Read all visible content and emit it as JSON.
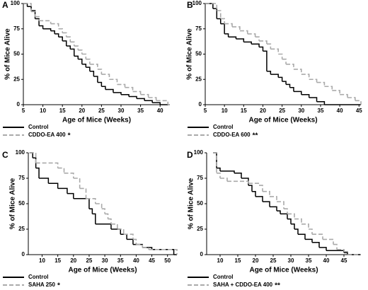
{
  "chart_data": [
    {
      "type": "line",
      "step": true,
      "panel": "A",
      "xlabel": "Age of Mice (Weeks)",
      "ylabel": "% of Mice Alive",
      "xlim": [
        5,
        42.5
      ],
      "xticks": [
        5,
        10,
        15,
        20,
        25,
        30,
        35,
        40
      ],
      "ylim": [
        0,
        100
      ],
      "yticks": [
        0,
        25,
        50,
        75,
        100
      ],
      "significance": "*",
      "series": [
        {
          "name": "Control",
          "color": "#000000",
          "linestyle": "solid",
          "x": [
            5,
            6,
            7,
            8,
            9,
            10,
            12,
            13,
            14,
            15,
            16,
            17,
            18,
            19,
            20,
            21,
            22,
            23,
            24,
            25,
            26,
            28,
            30,
            32,
            34,
            36,
            38,
            40
          ],
          "values": [
            100,
            97,
            93,
            85,
            78,
            75,
            73,
            70,
            67,
            63,
            58,
            55,
            48,
            45,
            40,
            37,
            33,
            28,
            22,
            18,
            15,
            12,
            10,
            8,
            6,
            4,
            2,
            0
          ]
        },
        {
          "name": "CDDO-EA 400",
          "color": "#aaaaaa",
          "linestyle": "dashed",
          "x": [
            5,
            7,
            8,
            9,
            12,
            14,
            15,
            16,
            17,
            18,
            19,
            20,
            21,
            22,
            24,
            25,
            27,
            29,
            31,
            33,
            35,
            37,
            39,
            42
          ],
          "values": [
            100,
            92,
            87,
            83,
            80,
            75,
            71,
            67,
            62,
            58,
            54,
            50,
            45,
            40,
            35,
            30,
            25,
            20,
            17,
            13,
            10,
            7,
            4,
            0
          ]
        }
      ]
    },
    {
      "type": "line",
      "step": true,
      "panel": "B",
      "xlabel": "Age of Mice (Weeks)",
      "ylabel": "% of Mice Alive",
      "xlim": [
        5,
        45.5
      ],
      "xticks": [
        5,
        10,
        15,
        20,
        25,
        30,
        35,
        40,
        45
      ],
      "ylim": [
        0,
        100
      ],
      "yticks": [
        0,
        25,
        50,
        75,
        100
      ],
      "significance": "**",
      "series": [
        {
          "name": "Control",
          "color": "#000000",
          "linestyle": "solid",
          "x": [
            5,
            7,
            8,
            9,
            10,
            11,
            13,
            15,
            17,
            19,
            20,
            21,
            22,
            24,
            25,
            26,
            27,
            28,
            30,
            32,
            34,
            36
          ],
          "values": [
            100,
            95,
            85,
            80,
            70,
            67,
            65,
            62,
            60,
            57,
            53,
            33,
            30,
            27,
            23,
            20,
            17,
            13,
            10,
            7,
            3,
            0
          ]
        },
        {
          "name": "CDDO-EA 600",
          "color": "#aaaaaa",
          "linestyle": "dashed",
          "x": [
            5,
            8,
            9,
            10,
            12,
            14,
            16,
            18,
            19,
            21,
            22,
            24,
            25,
            26,
            28,
            30,
            32,
            34,
            36,
            38,
            40,
            42,
            44,
            45.5
          ],
          "values": [
            100,
            93,
            85,
            80,
            77,
            73,
            70,
            67,
            63,
            60,
            55,
            50,
            45,
            40,
            35,
            30,
            25,
            22,
            18,
            14,
            10,
            7,
            4,
            0
          ]
        }
      ]
    },
    {
      "type": "line",
      "step": true,
      "panel": "C",
      "xlabel": "Age of Mice (Weeks)",
      "ylabel": "% of Mice Alive",
      "xlim": [
        5.6,
        53
      ],
      "xticks": [
        10,
        15,
        20,
        25,
        30,
        35,
        40,
        45,
        50
      ],
      "ylim": [
        0,
        100
      ],
      "yticks": [
        0,
        25,
        50,
        75,
        100
      ],
      "significance": "*",
      "series": [
        {
          "name": "Control",
          "color": "#000000",
          "linestyle": "solid",
          "x": [
            6,
            7,
            8,
            9,
            12,
            15,
            18,
            20,
            25,
            26,
            27,
            32,
            35,
            37,
            39,
            42,
            45,
            52
          ],
          "values": [
            100,
            95,
            85,
            75,
            70,
            65,
            60,
            55,
            45,
            40,
            30,
            25,
            20,
            15,
            10,
            7,
            5,
            0
          ]
        },
        {
          "name": "SAHA 250",
          "color": "#aaaaaa",
          "linestyle": "dashed",
          "x": [
            6,
            8,
            15,
            17,
            20,
            22,
            24,
            27,
            29,
            30,
            31,
            32,
            34,
            36,
            39,
            40,
            42,
            44,
            53
          ],
          "values": [
            100,
            90,
            85,
            80,
            75,
            65,
            55,
            50,
            45,
            40,
            35,
            30,
            25,
            20,
            15,
            10,
            7,
            5,
            0
          ]
        }
      ]
    },
    {
      "type": "line",
      "step": true,
      "panel": "D",
      "xlabel": "Age of Mice (Weeks)",
      "ylabel": "% of Mice Alive",
      "xlim": [
        6.2,
        49.8
      ],
      "xticks": [
        10,
        15,
        20,
        25,
        30,
        35,
        40,
        45
      ],
      "ylim": [
        0,
        100
      ],
      "yticks": [
        0,
        25,
        50,
        75,
        100
      ],
      "significance": "**",
      "series": [
        {
          "name": "Control",
          "color": "#000000",
          "linestyle": "solid",
          "x": [
            8,
            9,
            10,
            14,
            16,
            18,
            19,
            20,
            22,
            24,
            26,
            27,
            29,
            30,
            31,
            32,
            34,
            36,
            38,
            40,
            45,
            46
          ],
          "values": [
            100,
            85,
            82,
            80,
            75,
            68,
            62,
            57,
            52,
            47,
            43,
            40,
            35,
            30,
            25,
            20,
            15,
            12,
            7,
            4,
            2,
            0
          ]
        },
        {
          "name": "SAHA + CDDO-EA 400",
          "color": "#aaaaaa",
          "linestyle": "dashed",
          "x": [
            8,
            9,
            10,
            12,
            18,
            21,
            22,
            24,
            26,
            28,
            29,
            31,
            33,
            35,
            36,
            39,
            42,
            43,
            45,
            46
          ],
          "values": [
            100,
            80,
            75,
            72,
            70,
            68,
            62,
            57,
            52,
            45,
            40,
            35,
            30,
            25,
            20,
            15,
            10,
            5,
            3,
            0
          ]
        }
      ]
    }
  ]
}
